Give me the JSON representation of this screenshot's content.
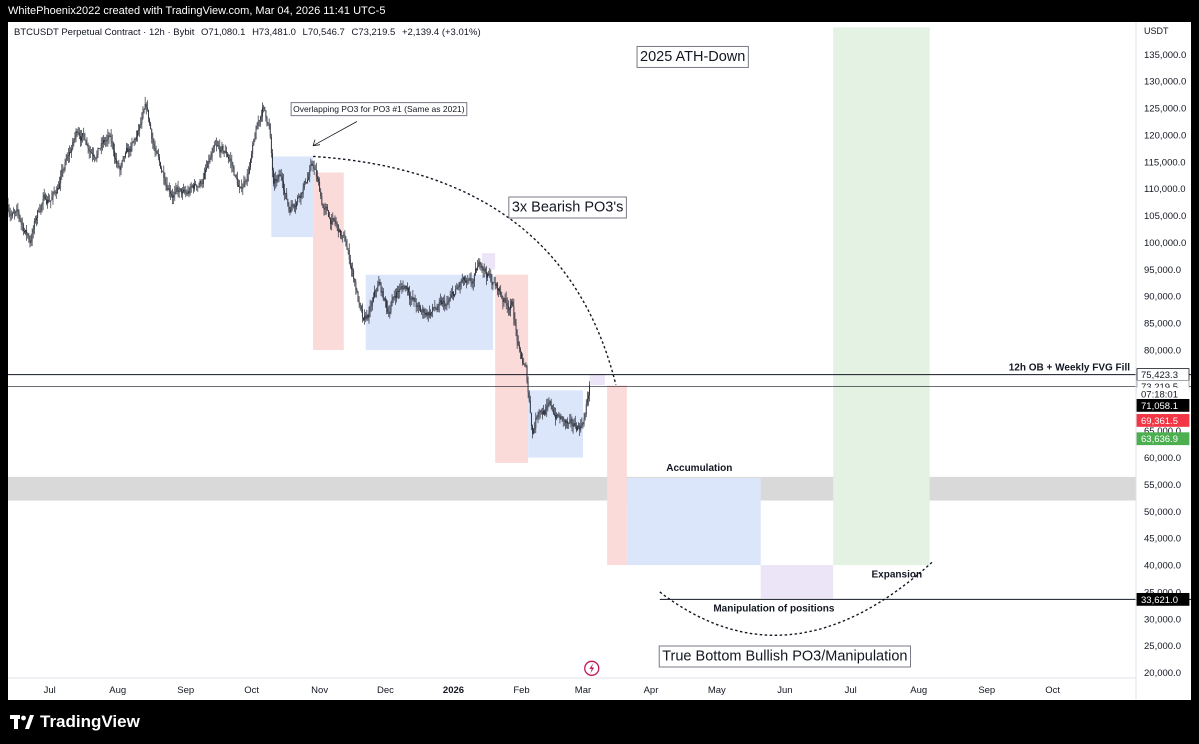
{
  "header": {
    "credit": "WhitePhoenix2022 created with TradingView.com, Mar 04, 2026 11:41 UTC-5"
  },
  "legend": {
    "symbol": "BTCUSDT Perpetual Contract · 12h · Bybit",
    "open": "O71,080.1",
    "high": "H73,481.0",
    "low": "L70,546.7",
    "close": "C73,219.5",
    "change": "+2,139.4 (+3.01%)"
  },
  "footer": {
    "brand": "TradingView",
    "logo_icon": "tradingview-logo-icon"
  },
  "colors": {
    "candle": "#2a2e39",
    "blue_box": "#dce6fb",
    "red_box": "#fbdada",
    "purple_box": "#ece4f7",
    "green_box": "#e4f2e4",
    "gray_band": "#d9d9d9",
    "price_red": "#f23645",
    "price_green": "#4caf50"
  },
  "chart_data": {
    "type": "candlestick",
    "title": "2025 ATH-Down",
    "currency_label": "USDT",
    "x_ticks": [
      "Jul",
      "Aug",
      "Sep",
      "Oct",
      "Nov",
      "Dec",
      "2026",
      "Feb",
      "Mar",
      "Apr",
      "May",
      "Jun",
      "Jul",
      "Aug",
      "Sep",
      "Oct"
    ],
    "x_range": [
      "2025-06-12",
      "2026-11-08"
    ],
    "y_range": [
      19000,
      141000
    ],
    "y_ticks": [
      20000,
      25000,
      30000,
      35000,
      40000,
      45000,
      50000,
      55000,
      60000,
      65000,
      70000,
      75000,
      80000,
      85000,
      90000,
      95000,
      100000,
      105000,
      110000,
      115000,
      120000,
      125000,
      130000,
      135000
    ],
    "y_tick_labels": [
      "20,000.0",
      "25,000.0",
      "30,000.0",
      "35,000.0",
      "40,000.0",
      "45,000.0",
      "50,000.0",
      "55,000.0",
      "60,000.0",
      "65,000.0",
      "70,000.0",
      "75,000.0",
      "80,000.0",
      "85,000.0",
      "90,000.0",
      "95,000.0",
      "100,000.0",
      "105,000.0",
      "110,000.0",
      "115,000.0",
      "120,000.0",
      "125,000.0",
      "130,000.0",
      "135,000.0"
    ],
    "price_anchors": [
      {
        "date": "2025-06-12",
        "price": 107000
      },
      {
        "date": "2025-06-17",
        "price": 104000
      },
      {
        "date": "2025-06-22",
        "price": 100500
      },
      {
        "date": "2025-06-27",
        "price": 107500
      },
      {
        "date": "2025-07-03",
        "price": 109000
      },
      {
        "date": "2025-07-10",
        "price": 116000
      },
      {
        "date": "2025-07-14",
        "price": 121000
      },
      {
        "date": "2025-07-20",
        "price": 118000
      },
      {
        "date": "2025-07-28",
        "price": 119000
      },
      {
        "date": "2025-08-02",
        "price": 113000
      },
      {
        "date": "2025-08-08",
        "price": 117000
      },
      {
        "date": "2025-08-14",
        "price": 123500
      },
      {
        "date": "2025-08-20",
        "price": 113500
      },
      {
        "date": "2025-08-26",
        "price": 110500
      },
      {
        "date": "2025-09-01",
        "price": 108000
      },
      {
        "date": "2025-09-08",
        "price": 111500
      },
      {
        "date": "2025-09-14",
        "price": 116000
      },
      {
        "date": "2025-09-21",
        "price": 115500
      },
      {
        "date": "2025-09-26",
        "price": 109000
      },
      {
        "date": "2025-10-01",
        "price": 116000
      },
      {
        "date": "2025-10-06",
        "price": 125000
      },
      {
        "date": "2025-10-09",
        "price": 122000
      },
      {
        "date": "2025-10-11",
        "price": 110000
      },
      {
        "date": "2025-10-15",
        "price": 111500
      },
      {
        "date": "2025-10-18",
        "price": 106500
      },
      {
        "date": "2025-10-24",
        "price": 111000
      },
      {
        "date": "2025-10-29",
        "price": 114500
      },
      {
        "date": "2025-11-03",
        "price": 106000
      },
      {
        "date": "2025-11-08",
        "price": 103000
      },
      {
        "date": "2025-11-13",
        "price": 99000
      },
      {
        "date": "2025-11-17",
        "price": 93000
      },
      {
        "date": "2025-11-21",
        "price": 84000
      },
      {
        "date": "2025-11-24",
        "price": 86500
      },
      {
        "date": "2025-11-28",
        "price": 91500
      },
      {
        "date": "2025-12-02",
        "price": 87000
      },
      {
        "date": "2025-12-06",
        "price": 91000
      },
      {
        "date": "2025-12-11",
        "price": 92000
      },
      {
        "date": "2025-12-17",
        "price": 86500
      },
      {
        "date": "2025-12-23",
        "price": 87500
      },
      {
        "date": "2025-12-29",
        "price": 87500
      },
      {
        "date": "2026-01-05",
        "price": 92000
      },
      {
        "date": "2026-01-09",
        "price": 90500
      },
      {
        "date": "2026-01-14",
        "price": 96000
      },
      {
        "date": "2026-01-19",
        "price": 92500
      },
      {
        "date": "2026-01-24",
        "price": 89500
      },
      {
        "date": "2026-01-28",
        "price": 88500
      },
      {
        "date": "2026-01-31",
        "price": 79000
      },
      {
        "date": "2026-02-03",
        "price": 75500
      },
      {
        "date": "2026-02-06",
        "price": 65000
      },
      {
        "date": "2026-02-09",
        "price": 70000
      },
      {
        "date": "2026-02-14",
        "price": 69000
      },
      {
        "date": "2026-02-19",
        "price": 67000
      },
      {
        "date": "2026-02-24",
        "price": 64500
      },
      {
        "date": "2026-02-28",
        "price": 66000
      },
      {
        "date": "2026-03-02",
        "price": 68500
      },
      {
        "date": "2026-03-04",
        "price": 73200
      }
    ],
    "range_boxes": [
      {
        "type": "blue",
        "x0": "2025-10-10",
        "x1": "2025-10-29",
        "y0": 101000,
        "y1": 116000
      },
      {
        "type": "red",
        "x0": "2025-10-29",
        "x1": "2025-11-12",
        "y0": 80000,
        "y1": 113000
      },
      {
        "type": "blue",
        "x0": "2025-11-22",
        "x1": "2026-01-19",
        "y0": 80000,
        "y1": 94000
      },
      {
        "type": "purple",
        "x0": "2026-01-14",
        "x1": "2026-01-20",
        "y0": 95000,
        "y1": 98000
      },
      {
        "type": "red",
        "x0": "2026-01-20",
        "x1": "2026-02-04",
        "y0": 59000,
        "y1": 94000
      },
      {
        "type": "blue",
        "x0": "2026-02-04",
        "x1": "2026-03-01",
        "y0": 60000,
        "y1": 72500
      },
      {
        "type": "purple",
        "x0": "2026-03-04",
        "x1": "2026-03-11",
        "y0": 73500,
        "y1": 75400
      },
      {
        "type": "red",
        "x0": "2026-03-12",
        "x1": "2026-03-21",
        "y0": 40000,
        "y1": 73400
      },
      {
        "type": "blue",
        "x0": "2026-03-21",
        "x1": "2026-05-21",
        "y0": 40000,
        "y1": 56200
      },
      {
        "type": "purple",
        "x0": "2026-05-21",
        "x1": "2026-06-23",
        "y0": 33800,
        "y1": 40000
      },
      {
        "type": "green",
        "x0": "2026-06-23",
        "x1": "2026-08-06",
        "y0": 40000,
        "y1": 140000
      }
    ],
    "gray_band": {
      "y0": 52000,
      "y1": 56400
    },
    "horizontal_lines": [
      {
        "price": 75423.3,
        "label": "12h OB + Weekly FVG Fill",
        "x_start": "2025-06-12"
      },
      {
        "price": 73219.5,
        "x_start": "2025-06-12"
      },
      {
        "price": 33621.0,
        "x_start": "2026-04-05"
      }
    ],
    "curves": [
      {
        "name": "bearish-arc",
        "from": {
          "date": "2025-10-29",
          "price": 116000
        },
        "control": {
          "date": "2026-02-20",
          "price": 113000
        },
        "to": {
          "date": "2026-03-16",
          "price": 73500
        }
      },
      {
        "name": "bottom-arc",
        "from": {
          "date": "2026-04-05",
          "price": 35000
        },
        "control": {
          "date": "2026-06-03",
          "price": 16500
        },
        "to": {
          "date": "2026-08-07",
          "price": 40500
        }
      }
    ],
    "annotations": [
      {
        "name": "title-box",
        "text": "2025 ATH-Down",
        "date": "2026-04-20",
        "price": 134500,
        "style": "box-large"
      },
      {
        "name": "overlap-note",
        "text": "Overlapping PO3 for PO3 #1 (Same as 2021)",
        "date": "2025-11-28",
        "price": 124800,
        "style": "box-small"
      },
      {
        "name": "bearish-label",
        "text": "3x Bearish PO3's",
        "date": "2026-02-22",
        "price": 106500,
        "style": "box-large"
      },
      {
        "name": "accumulation-label",
        "text": "Accumulation",
        "date": "2026-04-23",
        "price": 58000,
        "style": "bold"
      },
      {
        "name": "expansion-label",
        "text": "Expansion",
        "date": "2026-07-22",
        "price": 38200,
        "style": "bold"
      },
      {
        "name": "manipulation-label",
        "text": "Manipulation of positions",
        "date": "2026-05-27",
        "price": 31800,
        "style": "bold"
      },
      {
        "name": "true-bottom-label",
        "text": "True Bottom Bullish PO3/Manipulation",
        "date": "2026-06-01",
        "price": 23000,
        "style": "box-large"
      }
    ],
    "price_labels": [
      {
        "text": "75,423.3",
        "price": 75423.3,
        "bg": "#ffffff",
        "fg": "#131722",
        "border": "#131722"
      },
      {
        "text": "73,219.5",
        "price": 73219.5,
        "bg": "#ffffff",
        "fg": "#131722",
        "border": "#9598a1"
      },
      {
        "text": "07:18:01",
        "price": 71800,
        "bg": "#ffffff",
        "fg": "#131722",
        "border": "#ffffff"
      },
      {
        "text": "71,058.1",
        "price": 69700,
        "bg": "#000000",
        "fg": "#ffffff",
        "border": "#000000"
      },
      {
        "text": "69,361.5",
        "price": 66900,
        "bg": "#f23645",
        "fg": "#ffffff",
        "border": "#f23645"
      },
      {
        "text": "63,636.9",
        "price": 63500,
        "bg": "#4caf50",
        "fg": "#ffffff",
        "border": "#4caf50"
      },
      {
        "text": "33,621.0",
        "price": 33621,
        "bg": "#000000",
        "fg": "#ffffff",
        "border": "#000000"
      }
    ],
    "icons": [
      {
        "name": "lightning-icon",
        "date": "2026-03-05",
        "price": 20800
      }
    ]
  }
}
